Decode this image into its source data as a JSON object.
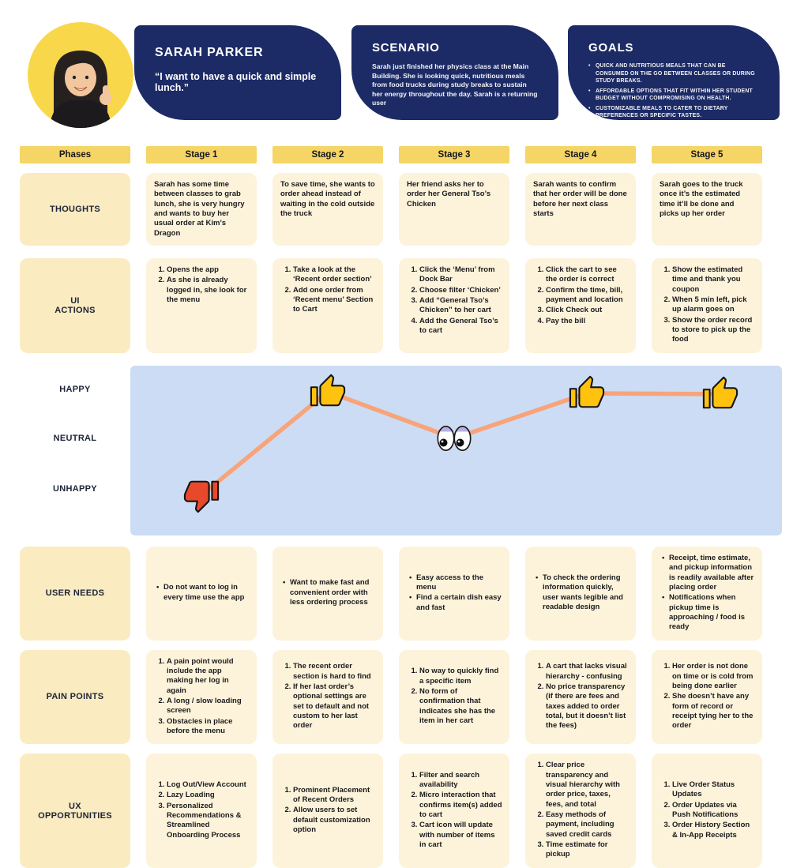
{
  "persona": {
    "name": "SARAH PARKER",
    "quote": "“I want to have a quick and simple lunch.”"
  },
  "scenario": {
    "title": "SCENARIO",
    "body": "Sarah just finished her physics class at the Main Building. She is looking quick, nutritious meals from food trucks during study breaks to sustain her energy throughout the day. Sarah is a returning user"
  },
  "goals": {
    "title": "GOALS",
    "items": [
      "QUICK AND NUTRITIOUS MEALS THAT CAN BE CONSUMED ON THE GO BETWEEN CLASSES OR DURING STUDY BREAKS.",
      "AFFORDABLE OPTIONS THAT FIT WITHIN HER STUDENT BUDGET WITHOUT COMPROMISING ON HEALTH.",
      "CUSTOMIZABLE MEALS TO CATER TO DIETARY PREFERENCES OR SPECIFIC TASTES."
    ]
  },
  "columns": [
    "Phases",
    "Stage 1",
    "Stage 2",
    "Stage 3",
    "Stage 4",
    "Stage 5"
  ],
  "rows": [
    {
      "label": "THOUGHTS",
      "cells": [
        "Sarah has some time between classes to grab lunch, she is very hungry and wants to buy her usual order at Kim’s Dragon",
        "To save time, she wants to order ahead instead of waiting in the cold outside the truck",
        "Her friend asks her to order her General Tso’s Chicken",
        "Sarah wants to confirm that her order will be done before her next class starts",
        "Sarah goes to the truck once it’s the estimated time it’ll be done and picks up her order"
      ]
    },
    {
      "label": "UI\nACTIONS",
      "cells": [
        [
          "Opens the app",
          "As she is already logged in, she look for the menu"
        ],
        [
          "Take a look at the ‘Recent order section’",
          "Add one order from ‘Recent menu’ Section to Cart"
        ],
        [
          "Click the ‘Menu’ from Dock Bar",
          "Choose filter ‘Chicken’",
          "Add “General Tso’s Chicken” to her cart",
          "Add the General Tso’s to cart"
        ],
        [
          "Click the cart to see the order is correct",
          "Confirm the time, bill, payment and location",
          "Click  Check out",
          "Pay the bill"
        ],
        [
          "Show the estimated time and thank you coupon",
          "When 5 min left, pick up alarm goes on",
          "Show the order record to store to pick up the food"
        ]
      ]
    },
    {
      "label": "USER NEEDS",
      "cells": [
        [
          "Do not want to log in every time use the app"
        ],
        [
          "Want to make fast and convenient order with less ordering process"
        ],
        [
          "Easy access to the menu",
          "Find a certain dish easy and fast"
        ],
        [
          "To check the ordering information quickly, user wants legible and readable design"
        ],
        [
          "Receipt, time estimate, and pickup information is readily available after placing order",
          "Notifications when pickup time is approaching / food is ready"
        ]
      ]
    },
    {
      "label": "PAIN POINTS",
      "cells": [
        [
          "A pain point would include the app making her log in again",
          "A long / slow loading screen",
          "Obstacles in place before the menu"
        ],
        [
          "The recent order section is hard to find",
          "If her last order’s optional settings are set to default and not custom to her last order"
        ],
        [
          "No way to quickly find a specific item",
          "No form of confirmation that indicates she has the item in her cart"
        ],
        [
          "A cart that lacks visual hierarchy - confusing",
          "No price transparency (if there are fees and taxes added to order total, but it doesn’t list the fees)"
        ],
        [
          "Her order is not done on time or is cold from being done earlier",
          "She doesn’t have any form of record or receipt tying her to the order"
        ]
      ]
    },
    {
      "label": "UX\nOPPORTUNITIES",
      "cells": [
        [
          "Log Out/View Account",
          "Lazy Loading",
          "Personalized Recommendations & Streamlined Onboarding Process"
        ],
        [
          "Prominent Placement of Recent Orders",
          "Allow users to set default customization option"
        ],
        [
          "Filter and search availability",
          "Micro interaction that confirms item(s) added to cart",
          "Cart icon will update with number of items in cart"
        ],
        [
          "Clear price transparency and visual hierarchy with order price, taxes, fees, and total",
          "Easy methods of payment, including saved credit cards",
          "Time estimate for pickup"
        ],
        [
          "Live Order Status Updates",
          "Order Updates via Push Notifications",
          "Order History Section & In-App Receipts"
        ]
      ]
    }
  ],
  "emotion_chart": {
    "levels": [
      "HAPPY",
      "NEUTRAL",
      "UNHAPPY"
    ],
    "points": [
      {
        "stage": "Stage 1",
        "level": "UNHAPPY",
        "icon": "thumbs-down"
      },
      {
        "stage": "Stage 2",
        "level": "HAPPY",
        "icon": "thumbs-up"
      },
      {
        "stage": "Stage 3",
        "level": "NEUTRAL",
        "icon": "eyes"
      },
      {
        "stage": "Stage 4",
        "level": "HAPPY",
        "icon": "thumbs-up"
      },
      {
        "stage": "Stage 5",
        "level": "HAPPY",
        "icon": "thumbs-up"
      }
    ],
    "line_color": "#f8a47a",
    "panel_color": "#ccdcf4"
  },
  "colors": {
    "navy": "#1c2b66",
    "stage_header_yellow": "#f5d565",
    "label_cream": "#faebc1",
    "cell_cream": "#fdf3da",
    "thumb_yellow": "#ffc20e",
    "thumb_red": "#e8492a"
  }
}
